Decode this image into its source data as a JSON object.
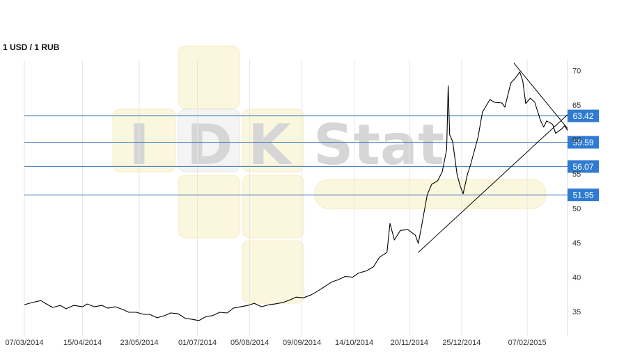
{
  "chart_data": {
    "type": "line",
    "title": "1 USD / 1 RUB",
    "xlabel": "",
    "ylabel": "",
    "x_ticks": [
      "07/03/2014",
      "15/04/2014",
      "23/05/2014",
      "01/07/2014",
      "05/08/2014",
      "09/09/2014",
      "14/10/2014",
      "20/11/2014",
      "25/12/2014",
      "07/02/2015"
    ],
    "y_ticks": [
      35,
      40,
      45,
      50,
      55,
      60,
      65,
      70
    ],
    "ylim": [
      31.5,
      71.5
    ],
    "xlim": [
      "2014-03-07",
      "2015-03-06"
    ],
    "grid": "vertical",
    "series": [
      {
        "values": [
          [
            "2014-03-07",
            36.0
          ],
          [
            "2014-03-12",
            36.3
          ],
          [
            "2014-03-18",
            36.6
          ],
          [
            "2014-03-21",
            36.2
          ],
          [
            "2014-03-26",
            35.6
          ],
          [
            "2014-03-31",
            35.9
          ],
          [
            "2014-04-04",
            35.4
          ],
          [
            "2014-04-09",
            35.9
          ],
          [
            "2014-04-15",
            35.7
          ],
          [
            "2014-04-18",
            36.1
          ],
          [
            "2014-04-23",
            35.7
          ],
          [
            "2014-04-28",
            35.9
          ],
          [
            "2014-05-02",
            35.5
          ],
          [
            "2014-05-07",
            35.7
          ],
          [
            "2014-05-12",
            35.3
          ],
          [
            "2014-05-16",
            34.9
          ],
          [
            "2014-05-21",
            34.9
          ],
          [
            "2014-05-26",
            34.6
          ],
          [
            "2014-05-30",
            34.6
          ],
          [
            "2014-06-04",
            34.1
          ],
          [
            "2014-06-09",
            34.4
          ],
          [
            "2014-06-13",
            34.8
          ],
          [
            "2014-06-18",
            34.7
          ],
          [
            "2014-06-23",
            34.0
          ],
          [
            "2014-06-27",
            33.9
          ],
          [
            "2014-07-02",
            33.7
          ],
          [
            "2014-07-07",
            34.3
          ],
          [
            "2014-07-11",
            34.4
          ],
          [
            "2014-07-16",
            34.9
          ],
          [
            "2014-07-21",
            34.8
          ],
          [
            "2014-07-25",
            35.5
          ],
          [
            "2014-07-30",
            35.7
          ],
          [
            "2014-08-04",
            35.9
          ],
          [
            "2014-08-08",
            36.2
          ],
          [
            "2014-08-13",
            35.7
          ],
          [
            "2014-08-18",
            36.0
          ],
          [
            "2014-08-22",
            36.1
          ],
          [
            "2014-08-27",
            36.3
          ],
          [
            "2014-09-01",
            36.7
          ],
          [
            "2014-09-05",
            37.1
          ],
          [
            "2014-09-10",
            37.0
          ],
          [
            "2014-09-15",
            37.4
          ],
          [
            "2014-09-19",
            37.9
          ],
          [
            "2014-09-24",
            38.6
          ],
          [
            "2014-09-29",
            39.3
          ],
          [
            "2014-10-03",
            39.6
          ],
          [
            "2014-10-08",
            40.1
          ],
          [
            "2014-10-13",
            40.0
          ],
          [
            "2014-10-17",
            40.6
          ],
          [
            "2014-10-22",
            40.9
          ],
          [
            "2014-10-27",
            41.5
          ],
          [
            "2014-10-31",
            42.9
          ],
          [
            "2014-11-05",
            43.6
          ],
          [
            "2014-11-07",
            47.8
          ],
          [
            "2014-11-10",
            45.4
          ],
          [
            "2014-11-14",
            46.8
          ],
          [
            "2014-11-19",
            46.9
          ],
          [
            "2014-11-24",
            46.1
          ],
          [
            "2014-11-26",
            44.9
          ],
          [
            "2014-11-28",
            47.2
          ],
          [
            "2014-12-02",
            52.0
          ],
          [
            "2014-12-05",
            53.5
          ],
          [
            "2014-12-09",
            54.0
          ],
          [
            "2014-12-12",
            55.3
          ],
          [
            "2014-12-15",
            58.5
          ],
          [
            "2014-12-16",
            67.8
          ],
          [
            "2014-12-17",
            60.7
          ],
          [
            "2014-12-19",
            59.7
          ],
          [
            "2014-12-22",
            54.9
          ],
          [
            "2014-12-24",
            53.3
          ],
          [
            "2014-12-26",
            52.1
          ],
          [
            "2014-12-29",
            55.0
          ],
          [
            "2014-12-31",
            56.3
          ],
          [
            "2015-01-05",
            60.3
          ],
          [
            "2015-01-08",
            64.0
          ],
          [
            "2015-01-13",
            65.8
          ],
          [
            "2015-01-16",
            65.4
          ],
          [
            "2015-01-21",
            65.3
          ],
          [
            "2015-01-23",
            64.7
          ],
          [
            "2015-01-27",
            68.2
          ],
          [
            "2015-01-30",
            68.9
          ],
          [
            "2015-02-02",
            69.8
          ],
          [
            "2015-02-04",
            68.5
          ],
          [
            "2015-02-06",
            65.2
          ],
          [
            "2015-02-09",
            66.0
          ],
          [
            "2015-02-12",
            65.4
          ],
          [
            "2015-02-16",
            62.7
          ],
          [
            "2015-02-18",
            61.8
          ],
          [
            "2015-02-20",
            62.7
          ],
          [
            "2015-02-24",
            62.2
          ],
          [
            "2015-02-26",
            60.9
          ],
          [
            "2015-03-02",
            61.5
          ],
          [
            "2015-03-04",
            62.0
          ],
          [
            "2015-03-06",
            61.3
          ]
        ]
      }
    ],
    "horizontal_levels": [
      63.42,
      59.59,
      56.07,
      51.95
    ],
    "level_labels": [
      "63.42",
      "59.59",
      "56.07",
      "51.95"
    ],
    "trend_lines": [
      {
        "from": [
          "2014-11-26",
          43.6
        ],
        "to": [
          "2015-03-06",
          63.6
        ]
      },
      {
        "from": [
          "2015-01-29",
          71.1
        ],
        "to": [
          "2015-03-06",
          61.6
        ]
      }
    ],
    "colors": {
      "line": "#000000",
      "level_line": "#3a75b8",
      "level_label_bg": "#2f7bd1",
      "grid": "#e6e6e6"
    }
  },
  "watermark": {
    "letters": [
      "I",
      "D",
      "K",
      "Stat"
    ]
  }
}
